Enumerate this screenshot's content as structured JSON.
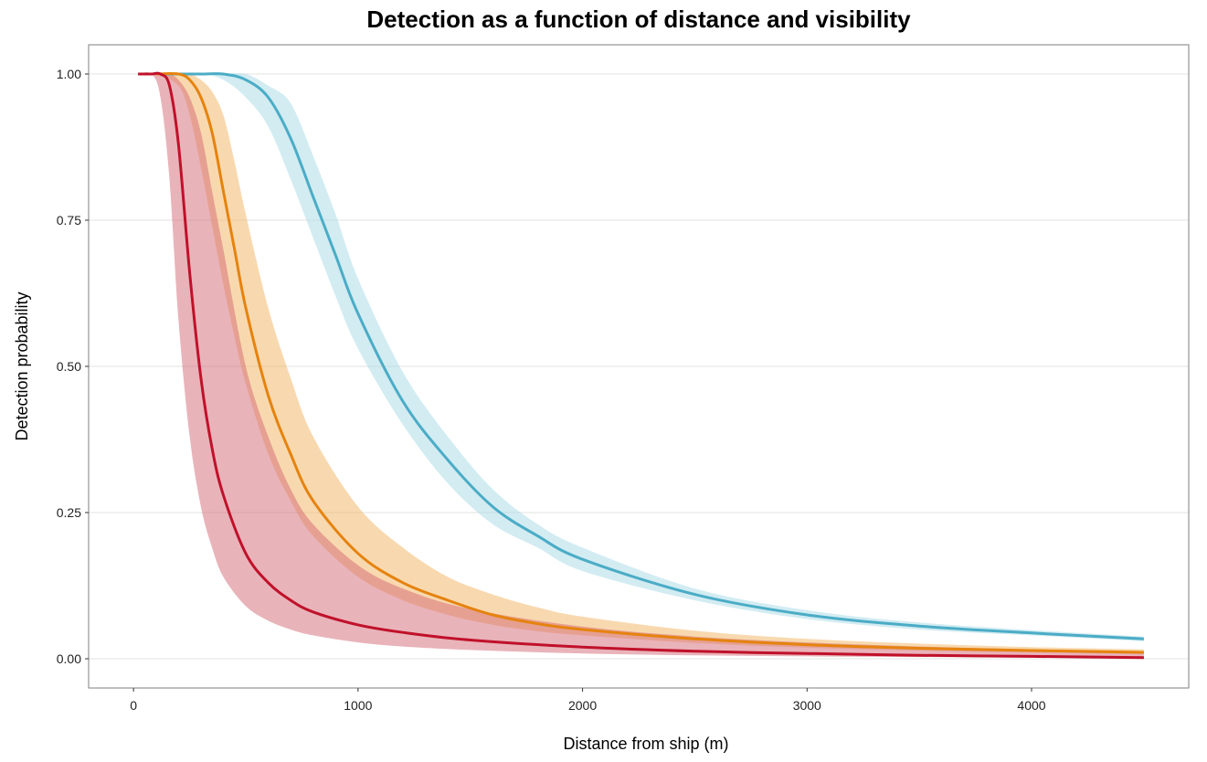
{
  "chart_data": {
    "type": "line",
    "title": "Detection as a function of distance and visibility",
    "xlabel": "Distance from ship (m)",
    "ylabel": "Detection probability",
    "xlim": [
      -200,
      4700
    ],
    "ylim": [
      -0.05,
      1.05
    ],
    "xticks": [
      0,
      1000,
      2000,
      3000,
      4000
    ],
    "xtick_labels": [
      "0",
      "1000",
      "2000",
      "3000",
      "4000"
    ],
    "yticks": [
      0,
      0.25,
      0.5,
      0.75,
      1.0
    ],
    "ytick_labels": [
      "0.00",
      "0.25",
      "0.50",
      "0.75",
      "1.00"
    ],
    "grid": true,
    "legend": "none",
    "series": [
      {
        "color": "#4BACC6",
        "band_color": "#A6D9E6",
        "x": [
          110,
          300,
          400,
          500,
          600,
          700,
          800,
          900,
          1000,
          1200,
          1400,
          1600,
          1800,
          2000,
          2500,
          3000,
          3500,
          4000,
          4500
        ],
        "y": [
          1.0,
          1.0,
          1.0,
          0.99,
          0.96,
          0.89,
          0.79,
          0.69,
          0.59,
          0.44,
          0.34,
          0.26,
          0.21,
          0.17,
          0.11,
          0.075,
          0.056,
          0.044,
          0.034
        ],
        "lower": [
          1.0,
          1.0,
          0.99,
          0.96,
          0.91,
          0.82,
          0.72,
          0.62,
          0.53,
          0.4,
          0.3,
          0.23,
          0.19,
          0.15,
          0.1,
          0.068,
          0.05,
          0.04,
          0.03
        ],
        "upper": [
          1.0,
          1.0,
          1.0,
          1.0,
          0.98,
          0.95,
          0.86,
          0.76,
          0.65,
          0.49,
          0.38,
          0.29,
          0.23,
          0.19,
          0.12,
          0.083,
          0.062,
          0.049,
          0.038
        ]
      },
      {
        "color": "#E5830F",
        "band_color": "#F1B35F",
        "x": [
          100,
          200,
          250,
          300,
          350,
          400,
          450,
          500,
          600,
          700,
          800,
          1000,
          1200,
          1400,
          1600,
          1800,
          2000,
          2500,
          3000,
          3500,
          4000,
          4500
        ],
        "y": [
          1.0,
          1.0,
          0.99,
          0.96,
          0.9,
          0.8,
          0.7,
          0.6,
          0.45,
          0.35,
          0.27,
          0.18,
          0.13,
          0.1,
          0.075,
          0.06,
          0.05,
          0.034,
          0.024,
          0.018,
          0.014,
          0.011
        ],
        "lower": [
          1.0,
          0.98,
          0.93,
          0.84,
          0.74,
          0.64,
          0.55,
          0.47,
          0.35,
          0.27,
          0.21,
          0.14,
          0.1,
          0.075,
          0.058,
          0.047,
          0.04,
          0.027,
          0.019,
          0.014,
          0.011,
          0.008
        ],
        "upper": [
          1.0,
          1.0,
          1.0,
          0.99,
          0.97,
          0.93,
          0.85,
          0.76,
          0.6,
          0.48,
          0.38,
          0.26,
          0.19,
          0.14,
          0.11,
          0.088,
          0.072,
          0.048,
          0.034,
          0.026,
          0.02,
          0.016
        ]
      },
      {
        "color": "#C0112A",
        "band_color": "#D46775",
        "x": [
          20,
          80,
          120,
          160,
          200,
          250,
          300,
          350,
          400,
          500,
          600,
          700,
          800,
          1000,
          1200,
          1500,
          2000,
          2500,
          3000,
          3500,
          4000,
          4500
        ],
        "y": [
          1.0,
          1.0,
          1.0,
          0.98,
          0.88,
          0.66,
          0.48,
          0.36,
          0.28,
          0.18,
          0.13,
          0.1,
          0.08,
          0.058,
          0.045,
          0.032,
          0.02,
          0.013,
          0.009,
          0.006,
          0.004,
          0.002
        ],
        "lower": [
          1.0,
          1.0,
          0.96,
          0.82,
          0.58,
          0.38,
          0.26,
          0.19,
          0.14,
          0.09,
          0.065,
          0.05,
          0.04,
          0.028,
          0.021,
          0.015,
          0.009,
          0.006,
          0.004,
          0.003,
          0.002,
          0.001
        ],
        "upper": [
          1.0,
          1.0,
          1.0,
          1.0,
          0.99,
          0.96,
          0.9,
          0.8,
          0.7,
          0.5,
          0.38,
          0.29,
          0.23,
          0.16,
          0.12,
          0.085,
          0.055,
          0.038,
          0.028,
          0.021,
          0.016,
          0.012
        ]
      }
    ]
  }
}
